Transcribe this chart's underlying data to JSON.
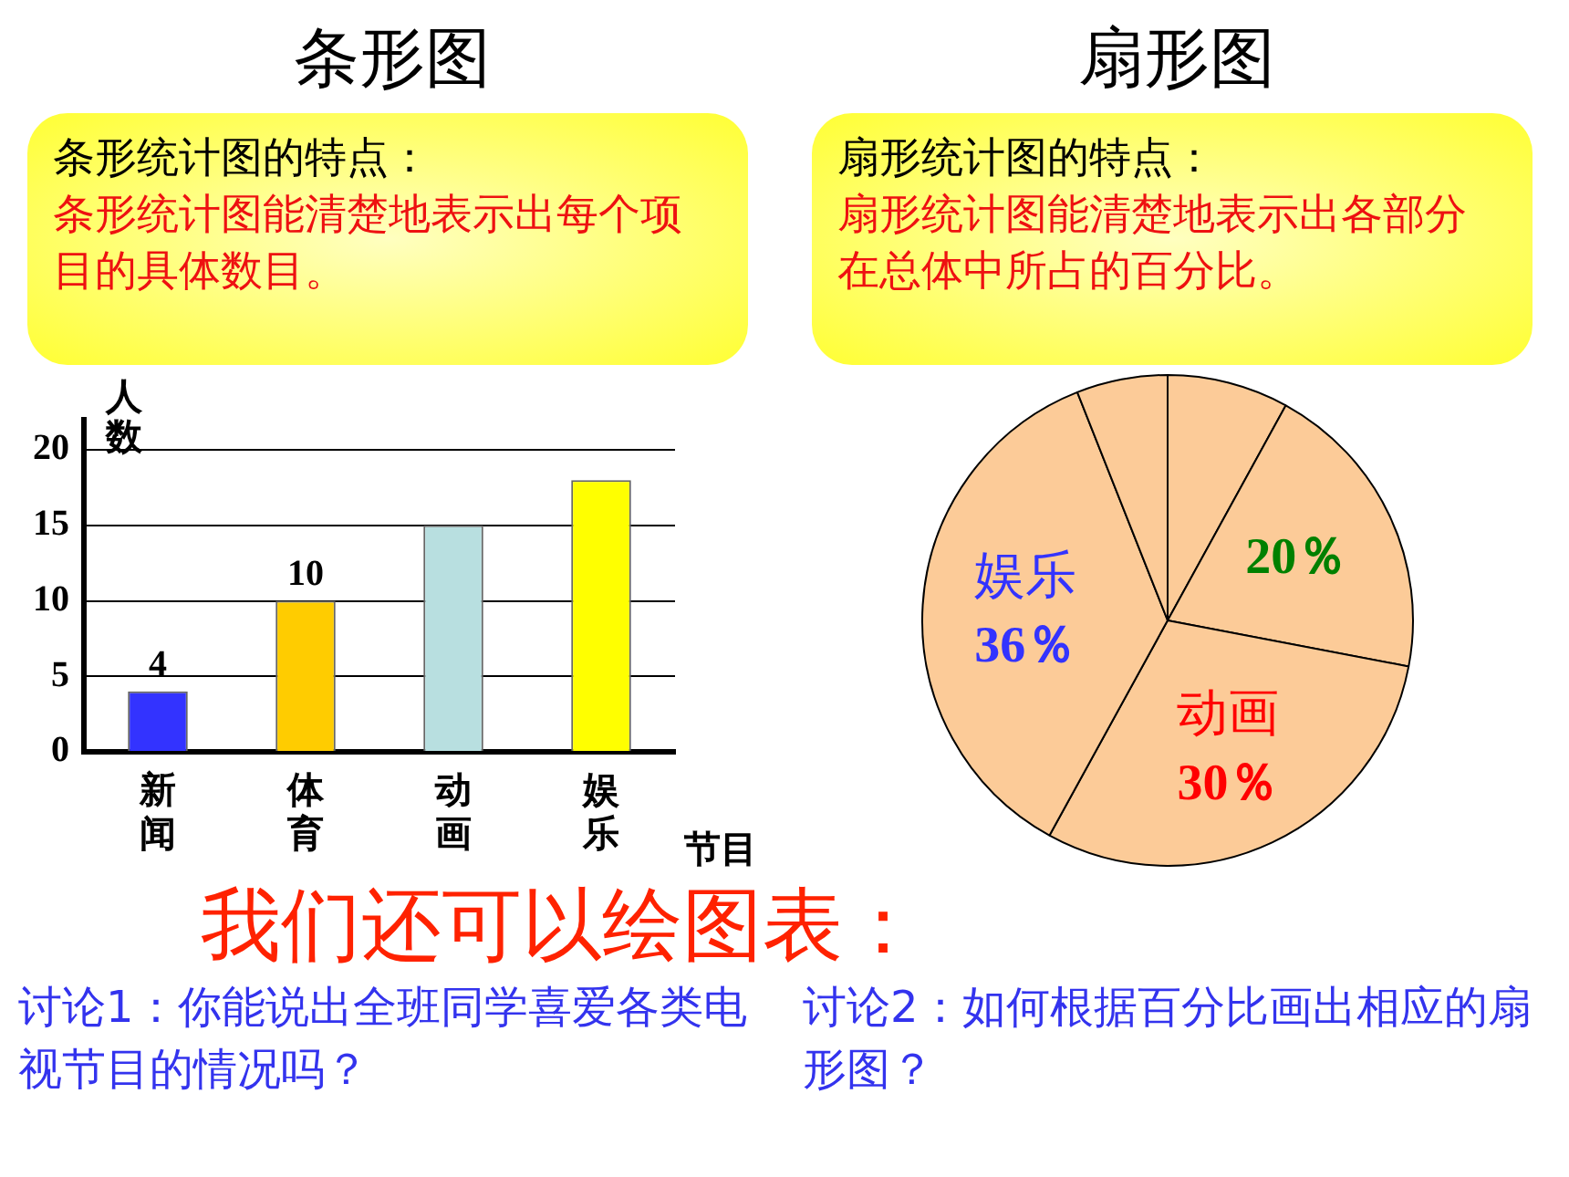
{
  "chart_data": [
    {
      "type": "bar",
      "title": "条形图",
      "xlabel": "节目",
      "ylabel": "人数",
      "categories": [
        "新闻",
        "体育",
        "动画",
        "娱乐"
      ],
      "values": [
        4,
        10,
        15,
        18
      ],
      "colors": [
        "#3333ff",
        "#ffcc00",
        "#b8dfe0",
        "#ffff00"
      ],
      "value_labels": [
        "4",
        "10",
        null,
        null
      ],
      "ylim": [
        0,
        22
      ],
      "yticks": [
        0,
        5,
        10,
        15,
        20
      ],
      "grid": "y",
      "legend": false,
      "annotations": [
        "条形统计图的特点：",
        "条形统计图能清楚地表示出每个项目的具体数目。",
        "讨论1：你能说出全班同学喜爱各类电视节目的情况吗？",
        "我们还可以绘图表："
      ]
    },
    {
      "type": "pie",
      "title": "扇形图",
      "categories": [
        null,
        null,
        "动画",
        "娱乐",
        null
      ],
      "values": [
        8,
        20,
        30,
        36,
        6
      ],
      "colors": [
        "#fccb98",
        "#fccb98",
        "#fccb98",
        "#fccb98",
        "#fccb98"
      ],
      "value_labels": [
        null,
        "20％",
        "30％",
        "36％",
        null
      ],
      "legend": false,
      "annotations": [
        "扇形统计图的特点：",
        "扇形统计图能清楚地表示出各部分在总体中所占的百分比。",
        "讨论2：如何根据百分比画出相应的扇形图？"
      ]
    }
  ]
}
